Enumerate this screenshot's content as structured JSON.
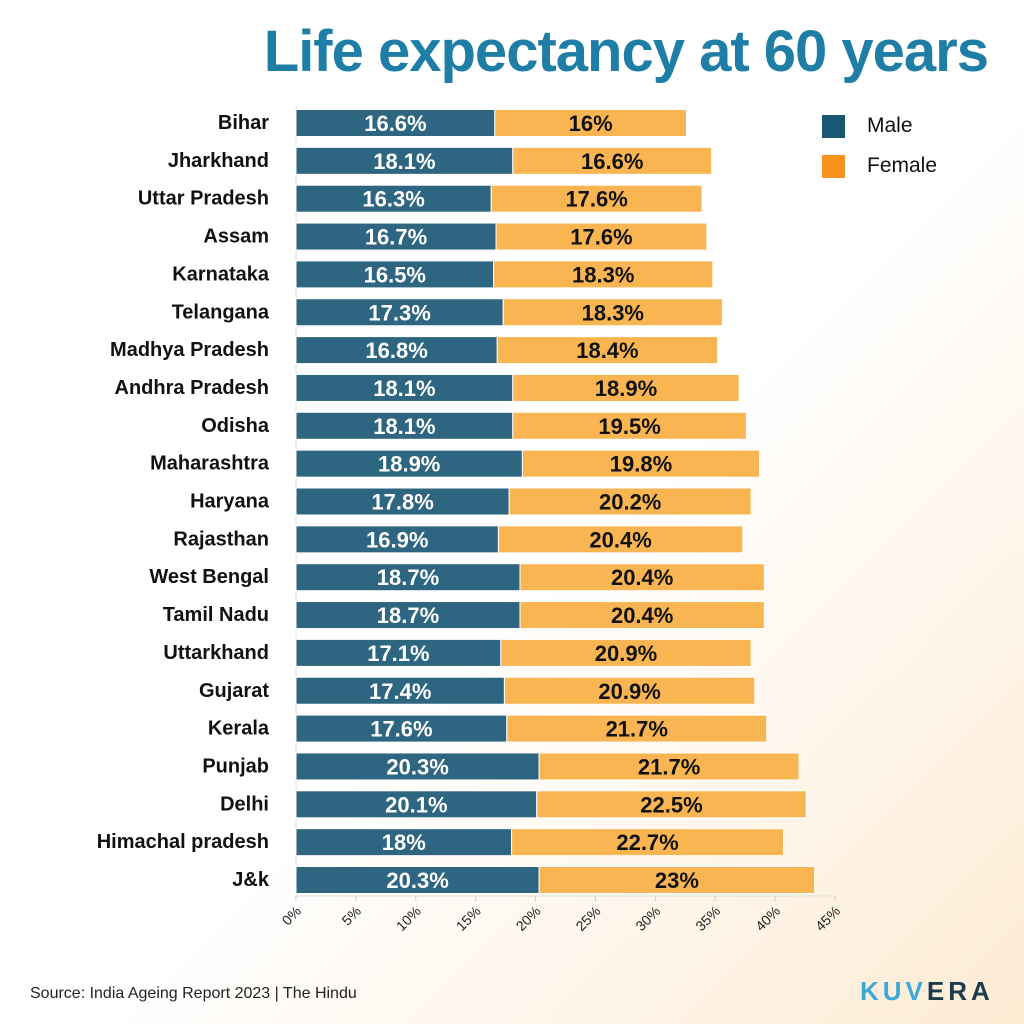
{
  "title": "Life expectancy at 60 years",
  "source": "Source: India Ageing Report 2023 | The Hindu",
  "logo": {
    "part1": "KUV",
    "part2": "ERA"
  },
  "chart_data": {
    "type": "bar",
    "stacked": true,
    "orientation": "horizontal",
    "title": "Life expectancy at 60 years",
    "categories": [
      "Bihar",
      "Jharkhand",
      "Uttar Pradesh",
      "Assam",
      "Karnataka",
      "Telangana",
      "Madhya Pradesh",
      "Andhra Pradesh",
      "Odisha",
      "Maharashtra",
      "Haryana",
      "Rajasthan",
      "West Bengal",
      "Tamil Nadu",
      "Uttarkhand",
      "Gujarat",
      "Kerala",
      "Punjab",
      "Delhi",
      "Himachal pradesh",
      "J&k"
    ],
    "series": [
      {
        "name": "Male",
        "color": "#2e6580",
        "legend_color": "#1b5675",
        "values": [
          16.6,
          18.1,
          16.3,
          16.7,
          16.5,
          17.3,
          16.8,
          18.1,
          18.1,
          18.9,
          17.8,
          16.9,
          18.7,
          18.7,
          17.1,
          17.4,
          17.6,
          20.3,
          20.1,
          18,
          20.3
        ],
        "labels": [
          "16.6%",
          "18.1%",
          "16.3%",
          "16.7%",
          "16.5%",
          "17.3%",
          "16.8%",
          "18.1%",
          "18.1%",
          "18.9%",
          "17.8%",
          "16.9%",
          "18.7%",
          "18.7%",
          "17.1%",
          "17.4%",
          "17.6%",
          "20.3%",
          "20.1%",
          "18%",
          "20.3%"
        ]
      },
      {
        "name": "Female",
        "color": "#f9b551",
        "legend_color": "#f7931e",
        "values": [
          16,
          16.6,
          17.6,
          17.6,
          18.3,
          18.3,
          18.4,
          18.9,
          19.5,
          19.8,
          20.2,
          20.4,
          20.4,
          20.4,
          20.9,
          20.9,
          21.7,
          21.7,
          22.5,
          22.7,
          23
        ],
        "labels": [
          "16%",
          "16.6%",
          "17.6%",
          "17.6%",
          "18.3%",
          "18.3%",
          "18.4%",
          "18.9%",
          "19.5%",
          "19.8%",
          "20.2%",
          "20.4%",
          "20.4%",
          "20.4%",
          "20.9%",
          "20.9%",
          "21.7%",
          "21.7%",
          "22.5%",
          "22.7%",
          "23%"
        ]
      }
    ],
    "xlim": [
      0,
      45
    ],
    "xticks": [
      "0%",
      "5%",
      "10%",
      "15%",
      "20%",
      "25%",
      "30%",
      "35%",
      "40%",
      "45%"
    ],
    "legend": "top-right",
    "grid": false
  }
}
